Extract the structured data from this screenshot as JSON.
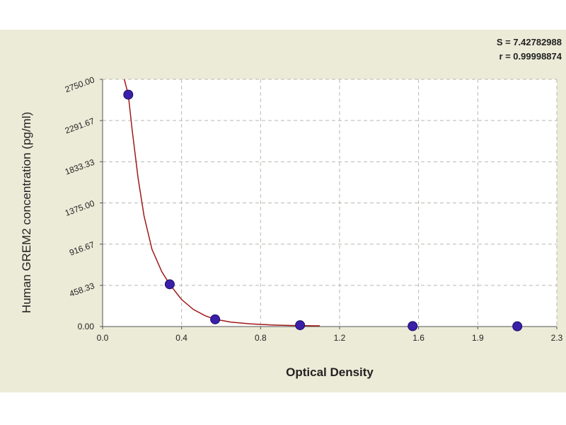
{
  "stats": {
    "s": "S = 7.42782988",
    "r": "r = 0.99998874"
  },
  "chart_data": {
    "type": "scatter",
    "xlabel": "Optical Density",
    "ylabel": "Human GREM2 concentration (pg/ml)",
    "xlim": [
      0,
      2.3
    ],
    "ylim": [
      0,
      2750
    ],
    "x_ticks": [
      0.0,
      0.4,
      0.8,
      1.2,
      1.6,
      1.9,
      2.3
    ],
    "x_tick_labels": [
      "0.0",
      "0.4",
      "0.8",
      "1.2",
      "1.6",
      "1.9",
      "2.3"
    ],
    "y_ticks": [
      0,
      458.33,
      916.67,
      1375,
      1833.33,
      2291.67,
      2750
    ],
    "y_tick_labels": [
      "0.00",
      "458.33",
      "916.67",
      "1375.00",
      "1833.33",
      "2291.67",
      "2750.00"
    ],
    "grid": true,
    "points": {
      "x": [
        0.13,
        0.34,
        0.57,
        1.0,
        1.57,
        2.1
      ],
      "y": [
        2580,
        470,
        80,
        15,
        5,
        3
      ]
    },
    "curve": {
      "x": [
        0.11,
        0.13,
        0.15,
        0.18,
        0.21,
        0.25,
        0.3,
        0.34,
        0.4,
        0.46,
        0.52,
        0.57,
        0.65,
        0.75,
        0.85,
        0.95,
        1.1
      ],
      "y": [
        2750,
        2580,
        2180,
        1650,
        1230,
        860,
        610,
        470,
        300,
        190,
        120,
        80,
        50,
        30,
        18,
        12,
        8
      ]
    },
    "colors": {
      "point": "#3a1fa8",
      "curve": "#a01818",
      "grid": "#b8b8b0"
    }
  }
}
